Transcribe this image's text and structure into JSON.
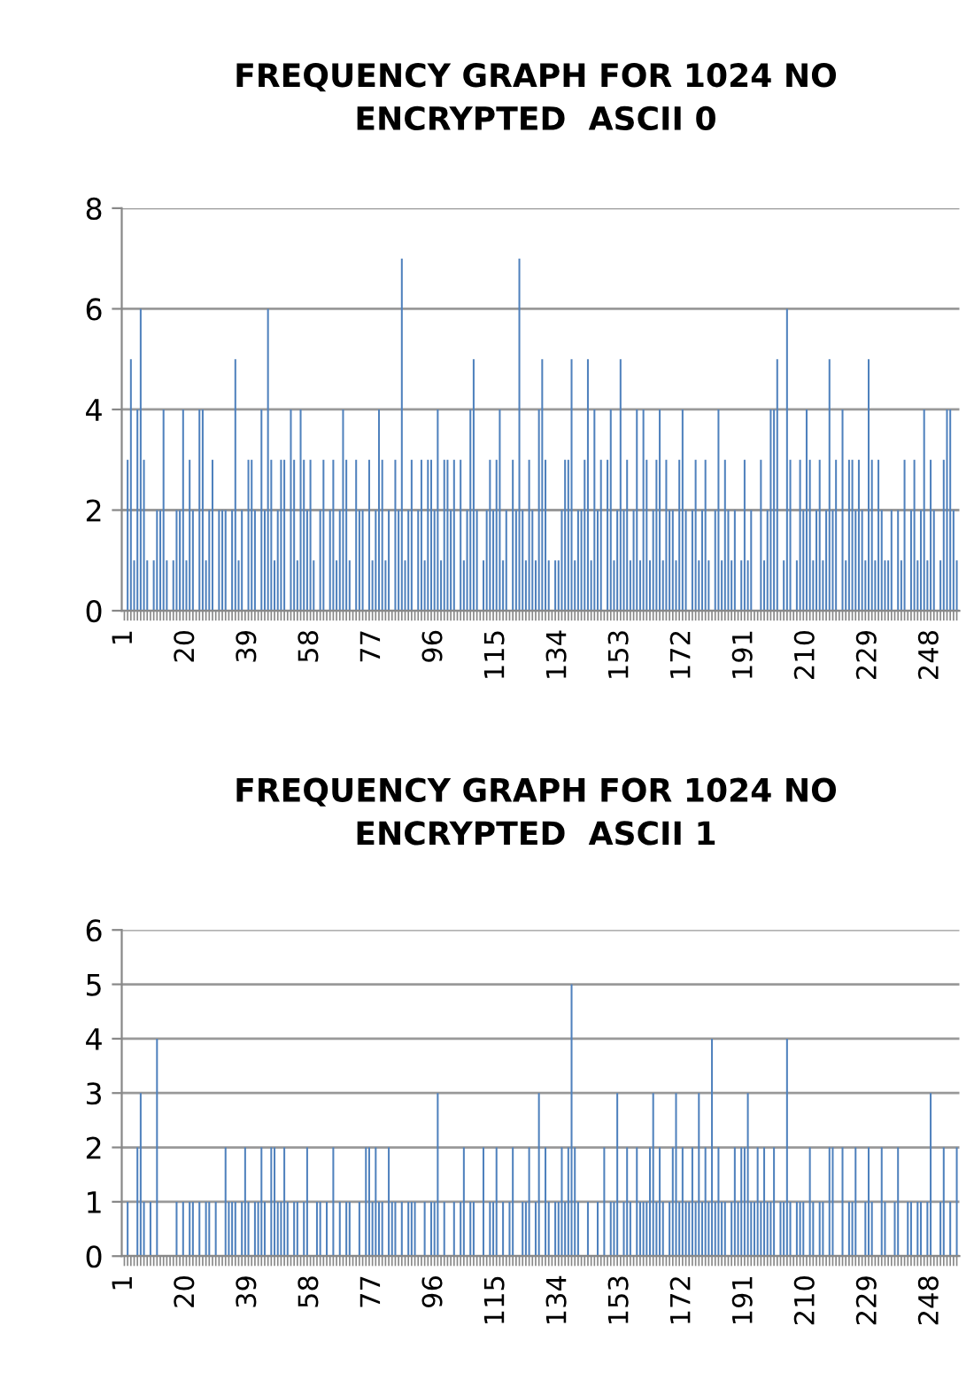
{
  "chart_data": [
    {
      "type": "bar",
      "title": "FREQUENCY GRAPH FOR 1024 NO ENCRYPTED  ASCII 0",
      "color": "#4f81bd",
      "ylim": [
        0,
        8
      ],
      "yticks": [
        0,
        2,
        4,
        6,
        8
      ],
      "grid": "y",
      "categories": [
        "1",
        null,
        null,
        null,
        null,
        null,
        null,
        null,
        null,
        null,
        null,
        null,
        null,
        null,
        null,
        null,
        null,
        null,
        null,
        "20",
        null,
        null,
        null,
        null,
        null,
        null,
        null,
        null,
        null,
        null,
        null,
        null,
        null,
        null,
        null,
        null,
        null,
        null,
        "39",
        null,
        null,
        null,
        null,
        null,
        null,
        null,
        null,
        null,
        null,
        null,
        null,
        null,
        null,
        null,
        null,
        null,
        null,
        "58",
        null,
        null,
        null,
        null,
        null,
        null,
        null,
        null,
        null,
        null,
        null,
        null,
        null,
        null,
        null,
        null,
        null,
        null,
        "77",
        null,
        null,
        null,
        null,
        null,
        null,
        null,
        null,
        null,
        null,
        null,
        null,
        null,
        null,
        null,
        null,
        null,
        null,
        "96",
        null,
        null,
        null,
        null,
        null,
        null,
        null,
        null,
        null,
        null,
        null,
        null,
        null,
        null,
        null,
        null,
        null,
        null,
        "115",
        null,
        null,
        null,
        null,
        null,
        null,
        null,
        null,
        null,
        null,
        null,
        null,
        null,
        null,
        null,
        null,
        null,
        null,
        "134",
        null,
        null,
        null,
        null,
        null,
        null,
        null,
        null,
        null,
        null,
        null,
        null,
        null,
        null,
        null,
        null,
        null,
        null,
        "153",
        null,
        null,
        null,
        null,
        null,
        null,
        null,
        null,
        null,
        null,
        null,
        null,
        null,
        null,
        null,
        null,
        null,
        null,
        "172",
        null,
        null,
        null,
        null,
        null,
        null,
        null,
        null,
        null,
        null,
        null,
        null,
        null,
        null,
        null,
        null,
        null,
        null,
        "191",
        null,
        null,
        null,
        null,
        null,
        null,
        null,
        null,
        null,
        null,
        null,
        null,
        null,
        null,
        null,
        null,
        null,
        null,
        "210",
        null,
        null,
        null,
        null,
        null,
        null,
        null,
        null,
        null,
        null,
        null,
        null,
        null,
        null,
        null,
        null,
        null,
        null,
        "229",
        null,
        null,
        null,
        null,
        null,
        null,
        null,
        null,
        null,
        null,
        null,
        null,
        null,
        null,
        null,
        null,
        null,
        null,
        "248",
        null,
        null,
        null,
        null,
        null,
        null,
        null,
        null
      ],
      "values": [
        0,
        3,
        5,
        1,
        4,
        6,
        3,
        1,
        0,
        1,
        2,
        2,
        4,
        1,
        0,
        1,
        2,
        2,
        4,
        1,
        3,
        2,
        0,
        4,
        4,
        1,
        2,
        3,
        0,
        2,
        2,
        2,
        0,
        2,
        5,
        1,
        2,
        0,
        3,
        3,
        2,
        0,
        4,
        2,
        6,
        3,
        1,
        2,
        3,
        3,
        0,
        4,
        3,
        1,
        4,
        3,
        2,
        3,
        1,
        0,
        2,
        3,
        0,
        2,
        3,
        1,
        2,
        4,
        3,
        1,
        0,
        3,
        2,
        2,
        0,
        3,
        1,
        2,
        4,
        3,
        1,
        2,
        0,
        3,
        2,
        7,
        1,
        2,
        3,
        0,
        2,
        3,
        1,
        3,
        3,
        2,
        4,
        1,
        3,
        3,
        2,
        3,
        0,
        3,
        1,
        2,
        4,
        5,
        2,
        0,
        1,
        2,
        3,
        2,
        3,
        4,
        1,
        2,
        0,
        3,
        2,
        7,
        2,
        1,
        3,
        2,
        1,
        4,
        5,
        3,
        1,
        0,
        1,
        1,
        2,
        3,
        3,
        5,
        1,
        2,
        2,
        3,
        5,
        1,
        4,
        2,
        3,
        0,
        3,
        4,
        1,
        2,
        5,
        2,
        3,
        1,
        2,
        4,
        1,
        4,
        3,
        1,
        2,
        3,
        4,
        1,
        3,
        2,
        2,
        1,
        3,
        4,
        2,
        0,
        2,
        3,
        1,
        2,
        3,
        1,
        0,
        2,
        4,
        1,
        3,
        2,
        1,
        2,
        0,
        1,
        3,
        1,
        2,
        0,
        0,
        3,
        1,
        2,
        4,
        4,
        5,
        0,
        1,
        6,
        3,
        0,
        1,
        3,
        2,
        4,
        3,
        1,
        2,
        3,
        1,
        2,
        5,
        2,
        3,
        0,
        4,
        1,
        3,
        3,
        2,
        3,
        2,
        1,
        5,
        3,
        1,
        3,
        2,
        1,
        1,
        2,
        0,
        2,
        1,
        3,
        0,
        2,
        3,
        1,
        2,
        4,
        1,
        3,
        2,
        0,
        1,
        3,
        4,
        4,
        2,
        1
      ]
    },
    {
      "type": "bar",
      "title": "FREQUENCY GRAPH FOR 1024 NO ENCRYPTED  ASCII 1",
      "color": "#4f81bd",
      "ylim": [
        0,
        6
      ],
      "yticks": [
        0,
        1,
        2,
        3,
        4,
        5,
        6
      ],
      "grid": "y",
      "categories": [
        "1",
        null,
        null,
        null,
        null,
        null,
        null,
        null,
        null,
        null,
        null,
        null,
        null,
        null,
        null,
        null,
        null,
        null,
        null,
        "20",
        null,
        null,
        null,
        null,
        null,
        null,
        null,
        null,
        null,
        null,
        null,
        null,
        null,
        null,
        null,
        null,
        null,
        null,
        "39",
        null,
        null,
        null,
        null,
        null,
        null,
        null,
        null,
        null,
        null,
        null,
        null,
        null,
        null,
        null,
        null,
        null,
        null,
        "58",
        null,
        null,
        null,
        null,
        null,
        null,
        null,
        null,
        null,
        null,
        null,
        null,
        null,
        null,
        null,
        null,
        null,
        null,
        "77",
        null,
        null,
        null,
        null,
        null,
        null,
        null,
        null,
        null,
        null,
        null,
        null,
        null,
        null,
        null,
        null,
        null,
        null,
        "96",
        null,
        null,
        null,
        null,
        null,
        null,
        null,
        null,
        null,
        null,
        null,
        null,
        null,
        null,
        null,
        null,
        null,
        null,
        "115",
        null,
        null,
        null,
        null,
        null,
        null,
        null,
        null,
        null,
        null,
        null,
        null,
        null,
        null,
        null,
        null,
        null,
        null,
        "134",
        null,
        null,
        null,
        null,
        null,
        null,
        null,
        null,
        null,
        null,
        null,
        null,
        null,
        null,
        null,
        null,
        null,
        null,
        "153",
        null,
        null,
        null,
        null,
        null,
        null,
        null,
        null,
        null,
        null,
        null,
        null,
        null,
        null,
        null,
        null,
        null,
        null,
        "172",
        null,
        null,
        null,
        null,
        null,
        null,
        null,
        null,
        null,
        null,
        null,
        null,
        null,
        null,
        null,
        null,
        null,
        null,
        "191",
        null,
        null,
        null,
        null,
        null,
        null,
        null,
        null,
        null,
        null,
        null,
        null,
        null,
        null,
        null,
        null,
        null,
        null,
        "210",
        null,
        null,
        null,
        null,
        null,
        null,
        null,
        null,
        null,
        null,
        null,
        null,
        null,
        null,
        null,
        null,
        null,
        null,
        "229",
        null,
        null,
        null,
        null,
        null,
        null,
        null,
        null,
        null,
        null,
        null,
        null,
        null,
        null,
        null,
        null,
        null,
        null,
        "248",
        null,
        null,
        null,
        null,
        null,
        null,
        null,
        null
      ],
      "values": [
        0,
        1,
        0,
        0,
        2,
        3,
        1,
        0,
        1,
        0,
        4,
        0,
        0,
        0,
        0,
        0,
        1,
        0,
        1,
        0,
        1,
        1,
        0,
        1,
        0,
        1,
        1,
        0,
        1,
        0,
        0,
        2,
        1,
        1,
        1,
        0,
        1,
        2,
        1,
        0,
        1,
        1,
        2,
        1,
        0,
        2,
        2,
        1,
        1,
        2,
        1,
        0,
        1,
        1,
        0,
        1,
        2,
        0,
        0,
        1,
        1,
        0,
        1,
        0,
        2,
        0,
        1,
        0,
        1,
        1,
        0,
        0,
        1,
        0,
        2,
        2,
        1,
        2,
        1,
        1,
        0,
        2,
        1,
        1,
        0,
        1,
        0,
        1,
        1,
        1,
        0,
        0,
        1,
        0,
        1,
        1,
        3,
        0,
        1,
        0,
        0,
        1,
        0,
        1,
        2,
        0,
        1,
        1,
        0,
        0,
        2,
        0,
        1,
        1,
        2,
        0,
        1,
        0,
        1,
        2,
        0,
        0,
        1,
        1,
        2,
        0,
        1,
        3,
        0,
        2,
        1,
        0,
        1,
        1,
        2,
        1,
        2,
        5,
        2,
        1,
        0,
        0,
        1,
        0,
        0,
        1,
        0,
        2,
        0,
        1,
        1,
        3,
        0,
        1,
        2,
        1,
        0,
        2,
        1,
        1,
        1,
        2,
        3,
        1,
        2,
        1,
        0,
        1,
        2,
        3,
        1,
        2,
        1,
        1,
        2,
        1,
        3,
        1,
        2,
        1,
        4,
        1,
        2,
        1,
        1,
        0,
        1,
        2,
        1,
        2,
        2,
        3,
        1,
        1,
        2,
        1,
        2,
        1,
        1,
        2,
        0,
        1,
        1,
        4,
        1,
        0,
        1,
        1,
        1,
        0,
        2,
        1,
        0,
        1,
        1,
        0,
        2,
        2,
        0,
        0,
        2,
        0,
        1,
        1,
        2,
        0,
        0,
        1,
        2,
        1,
        0,
        0,
        2,
        1,
        0,
        0,
        1,
        2,
        0,
        0,
        1,
        1,
        0,
        1,
        1,
        0,
        1,
        3,
        0,
        0,
        1,
        2,
        0,
        1,
        0,
        2
      ]
    }
  ]
}
